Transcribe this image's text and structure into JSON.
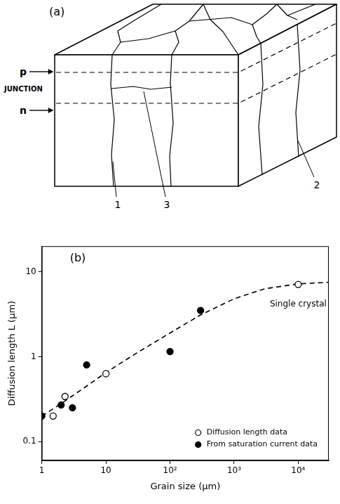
{
  "diagram": {
    "label": "(a)",
    "p_label": "p",
    "junction_label": "JUNCTION",
    "n_label": "n",
    "callouts": [
      "1",
      "3",
      "2"
    ]
  },
  "chart_data": {
    "type": "scatter",
    "label": "(b)",
    "x_label": "Grain size (μm)",
    "y_label": "Diffusion length L (μm)",
    "log": true,
    "grid": false,
    "legend": "lower right",
    "xlim": [
      1,
      30000
    ],
    "xticks": [
      1,
      10,
      {
        "value": 100,
        "label": "10²"
      },
      {
        "value": 1000,
        "label": "10³"
      },
      {
        "value": 10000,
        "label": "10⁴"
      }
    ],
    "ylim": [
      0.06,
      20
    ],
    "yticks": [
      0.1,
      1,
      10
    ],
    "annotations": [
      {
        "text": "Single crystal",
        "x": 10000,
        "y": 4.6
      }
    ],
    "series": [
      {
        "type": "line",
        "line_style": "dashed",
        "color": "#000000",
        "x": [
          1,
          2,
          5,
          10,
          30,
          100,
          300,
          1000,
          3000,
          10000,
          30000
        ],
        "values": [
          0.2,
          0.28,
          0.45,
          0.65,
          1.1,
          1.9,
          3.1,
          4.8,
          6.3,
          7.2,
          7.5
        ]
      },
      {
        "name": "Diffusion length data",
        "marker": "open circle",
        "color": "#000000",
        "x": [
          1.5,
          2.3,
          10,
          10000
        ],
        "values": [
          0.2,
          0.34,
          0.63,
          7.1
        ]
      },
      {
        "name": "From saturation current data",
        "marker": "filled circle",
        "color": "#000000",
        "x": [
          1,
          2,
          3,
          5,
          100,
          300
        ],
        "values": [
          0.2,
          0.27,
          0.25,
          0.8,
          1.15,
          3.5
        ]
      }
    ]
  }
}
